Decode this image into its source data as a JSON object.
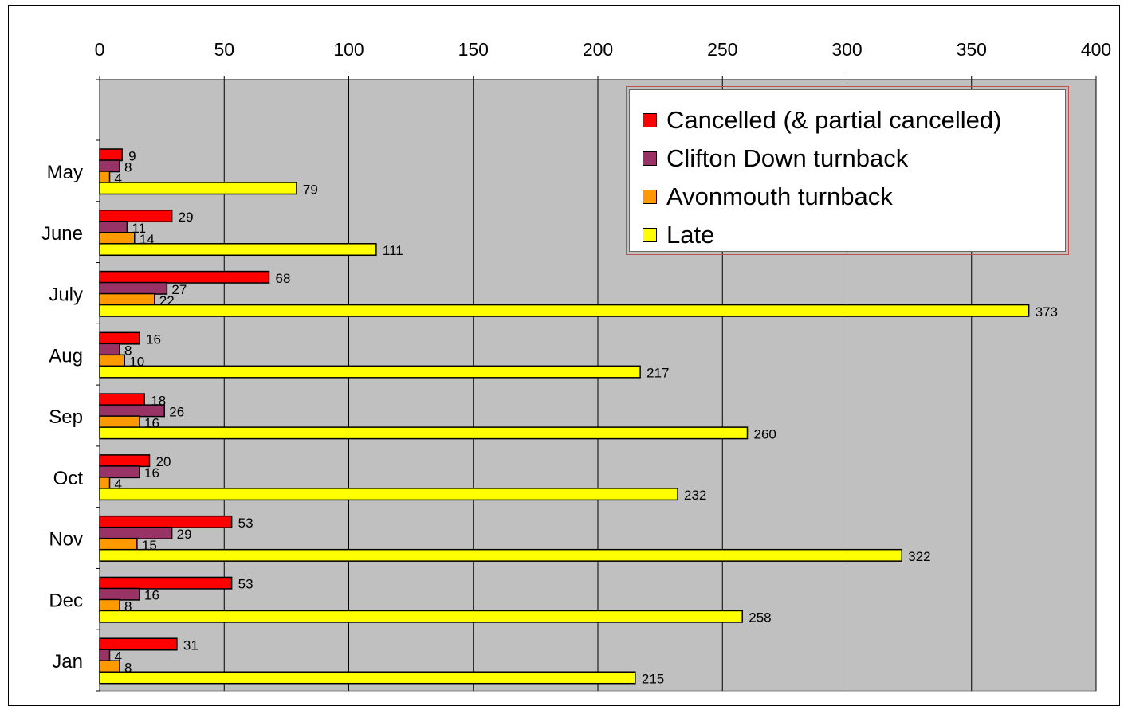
{
  "chart_data": {
    "type": "bar",
    "orientation": "horizontal",
    "categories": [
      "May",
      "June",
      "July",
      "Aug",
      "Sep",
      "Oct",
      "Nov",
      "Dec",
      "Jan"
    ],
    "series": [
      {
        "name": "Cancelled (& partial cancelled)",
        "color": "#ff0000",
        "values": [
          9,
          29,
          68,
          16,
          18,
          20,
          53,
          53,
          31
        ]
      },
      {
        "name": "Clifton Down turnback",
        "color": "#993366",
        "values": [
          8,
          11,
          27,
          8,
          26,
          16,
          29,
          16,
          4
        ]
      },
      {
        "name": "Avonmouth turnback",
        "color": "#ff9900",
        "values": [
          4,
          14,
          22,
          10,
          16,
          4,
          15,
          8,
          8
        ]
      },
      {
        "name": "Late",
        "color": "#ffff00",
        "values": [
          79,
          111,
          373,
          217,
          260,
          232,
          322,
          258,
          215
        ]
      }
    ],
    "xlim": [
      0,
      400
    ],
    "xticks": [
      0,
      50,
      100,
      150,
      200,
      250,
      300,
      350,
      400
    ],
    "x_axis_position": "top",
    "grid": true,
    "plot_background": "#c0c0c0",
    "legend_position": "top-right",
    "title": "",
    "xlabel": "",
    "ylabel": ""
  }
}
